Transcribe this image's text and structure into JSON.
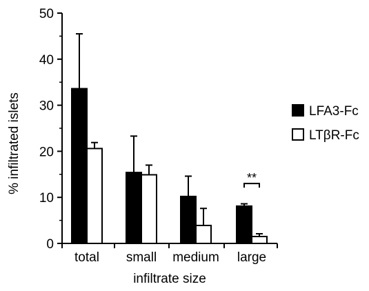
{
  "chart_data": {
    "type": "bar",
    "xlabel": "infiltrate size",
    "ylabel": "% infiltrated islets",
    "categories": [
      "total",
      "small",
      "medium",
      "large"
    ],
    "ylim": [
      0,
      50
    ],
    "yticks": [
      "0",
      "10",
      "20",
      "30",
      "40",
      "50"
    ],
    "legend_position": "right",
    "grid": false,
    "series": [
      {
        "name": "LFA3-Fc",
        "color": "#000000",
        "values": [
          33.6,
          15.4,
          10.2,
          8.1
        ],
        "error_upper": [
          45.5,
          23.3,
          14.6,
          8.6
        ]
      },
      {
        "name": "LTβR-Fc",
        "color": "#ffffff",
        "values": [
          20.6,
          14.9,
          3.9,
          1.5
        ],
        "error_upper": [
          21.9,
          17.0,
          7.6,
          2.1
        ]
      }
    ],
    "annotations": [
      {
        "text": "**",
        "category": "large",
        "y": 13.0
      }
    ]
  }
}
